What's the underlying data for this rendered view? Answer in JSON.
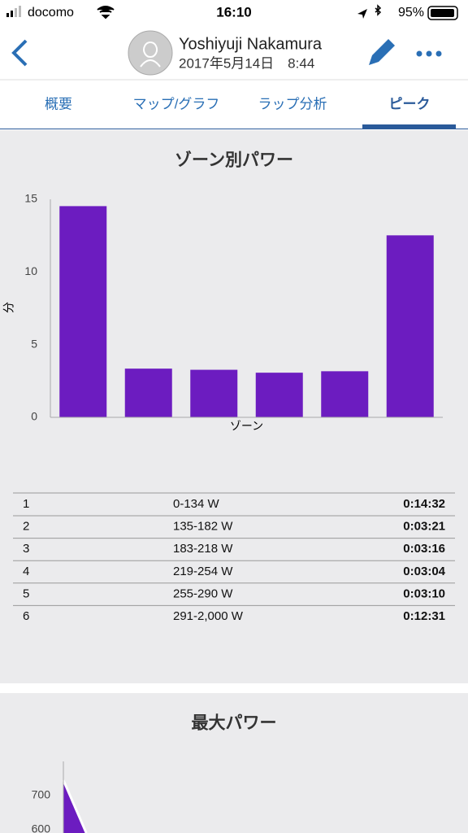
{
  "status_bar": {
    "carrier": "docomo",
    "time": "16:10",
    "battery": "95%"
  },
  "header": {
    "name": "Yoshiyuji Nakamura",
    "date": "2017年5月14日　8:44"
  },
  "tabs": [
    "概要",
    "マップ/グラフ",
    "ラップ分析",
    "ピーク"
  ],
  "zone_table": {
    "rows": [
      [
        "1",
        "0-134 W",
        "0:14:32"
      ],
      [
        "2",
        "135-182 W",
        "0:03:21"
      ],
      [
        "3",
        "183-218 W",
        "0:03:16"
      ],
      [
        "4",
        "219-254 W",
        "0:03:04"
      ],
      [
        "5",
        "255-290 W",
        "0:03:10"
      ],
      [
        "6",
        "291-2,000 W",
        "0:12:31"
      ]
    ]
  },
  "chart_data": [
    {
      "type": "bar",
      "title": "ゾーン別パワー",
      "y_label": "分",
      "x_label": "ゾーン",
      "categories": [
        null,
        null,
        null,
        null,
        null,
        null
      ],
      "values": [
        14.53,
        3.35,
        3.27,
        3.07,
        3.17,
        12.52
      ],
      "color": "#6c1cc0",
      "ylim": [
        0,
        15
      ],
      "yticks": [
        0,
        5,
        10,
        15
      ]
    },
    {
      "type": "area",
      "title": "最大パワー",
      "x": [
        0,
        1.2
      ],
      "values": [
        745,
        590
      ],
      "color": "#6c1cc0",
      "xlim": [
        0,
        20
      ],
      "ylim": [
        590,
        800
      ],
      "yticks": [
        600,
        700
      ]
    }
  ]
}
